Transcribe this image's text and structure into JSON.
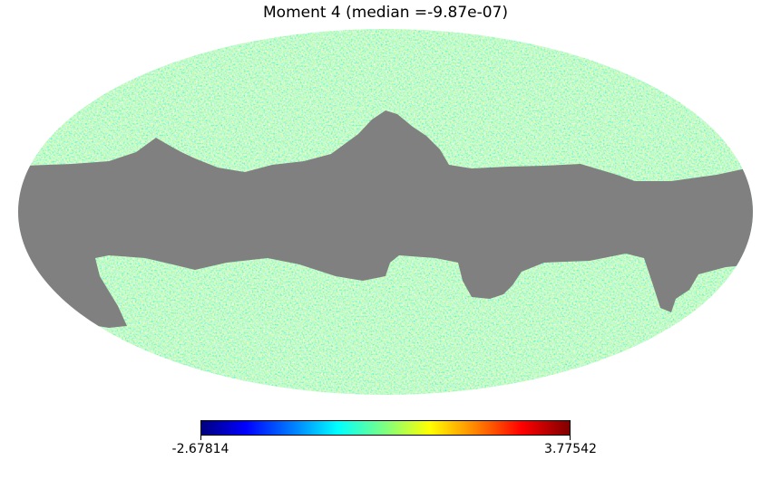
{
  "title": "Moment 4 (median =-9.87e-07)",
  "colorbar": {
    "min_label": "-2.67814",
    "max_label": "3.77542",
    "min": -2.67814,
    "max": 3.77542,
    "colormap": "jet"
  },
  "projection": "mollweide",
  "colors": {
    "mask": "#808080",
    "background": "#ffffff",
    "text": "#000000"
  }
}
